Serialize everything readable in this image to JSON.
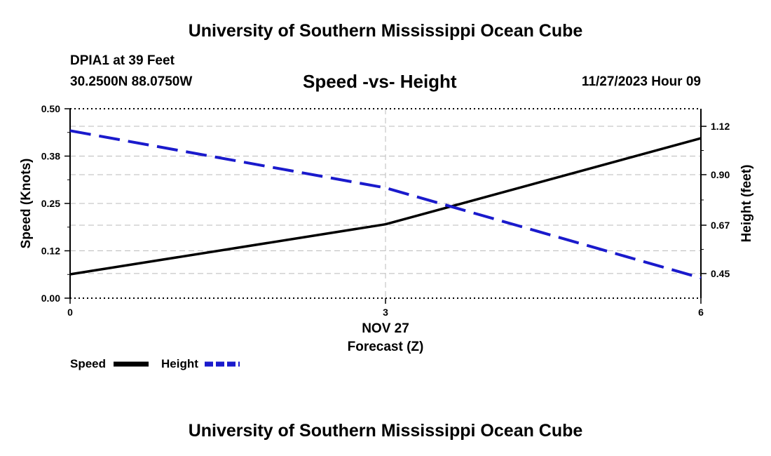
{
  "header": {
    "title": "University of Southern Mississippi Ocean Cube",
    "station": "DPIA1 at 39 Feet",
    "coords": "30.2500N  88.0750W",
    "chart_title": "Speed -vs- Height",
    "datetime": "11/27/2023 Hour 09"
  },
  "footer": {
    "title": "University of Southern Mississippi Ocean Cube"
  },
  "chart_data": {
    "type": "line",
    "title": "Speed -vs- Height",
    "xlabel": "Forecast (Z)",
    "xlabel_date": "NOV 27",
    "x": [
      0,
      3,
      6
    ],
    "xlim": [
      0,
      6
    ],
    "x_ticks": [
      "0",
      "3",
      "6"
    ],
    "y_left": {
      "label": "Speed (Knots)",
      "lim": [
        0,
        0.5
      ],
      "ticks": [
        0.0,
        0.125,
        0.25,
        0.375,
        0.5
      ],
      "tick_labels": [
        "0.00",
        "0.12",
        "0.25",
        "0.38",
        "0.50"
      ]
    },
    "y_right": {
      "label": "Height (feet)",
      "lim": [
        0.338,
        1.2
      ],
      "ticks": [
        0.45,
        0.67,
        0.9,
        1.12
      ],
      "tick_labels": [
        "0.45",
        "0.67",
        "0.90",
        "1.12"
      ]
    },
    "series": [
      {
        "name": "Speed",
        "axis": "left",
        "color": "#000000",
        "dash": "solid",
        "values": [
          0.063,
          0.195,
          0.422
        ]
      },
      {
        "name": "Height",
        "axis": "right",
        "color": "#1a1acc",
        "dash": "dashed",
        "values": [
          1.1,
          0.84,
          0.43
        ]
      }
    ],
    "grid": true,
    "legend": "bottom-left"
  }
}
